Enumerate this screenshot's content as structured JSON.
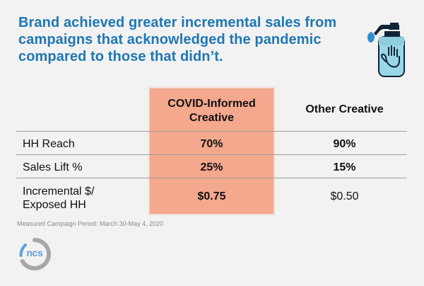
{
  "title": "Brand achieved greater incremental sales from campaigns that acknowledged the pandemic compared to those that didn’t.",
  "columns": {
    "covid": "COVID-Informed Creative",
    "other": "Other Creative"
  },
  "rows": [
    {
      "label": "HH Reach",
      "covid": "70%",
      "other": "90%"
    },
    {
      "label": "Sales Lift %",
      "covid": "25%",
      "other": "15%"
    },
    {
      "label": "Incremental $/ Exposed HH",
      "covid": "$0.75",
      "other": "$0.50"
    }
  ],
  "footnote": "Measured Campaign Period: March 30-May 4, 2020",
  "logo": {
    "text": "ncs"
  },
  "icons": {
    "title_icon": "hand-sanitizer-icon"
  },
  "colors": {
    "title": "#1f77b4",
    "highlight": "#f4a88e",
    "accent": "#9ad7e6"
  }
}
